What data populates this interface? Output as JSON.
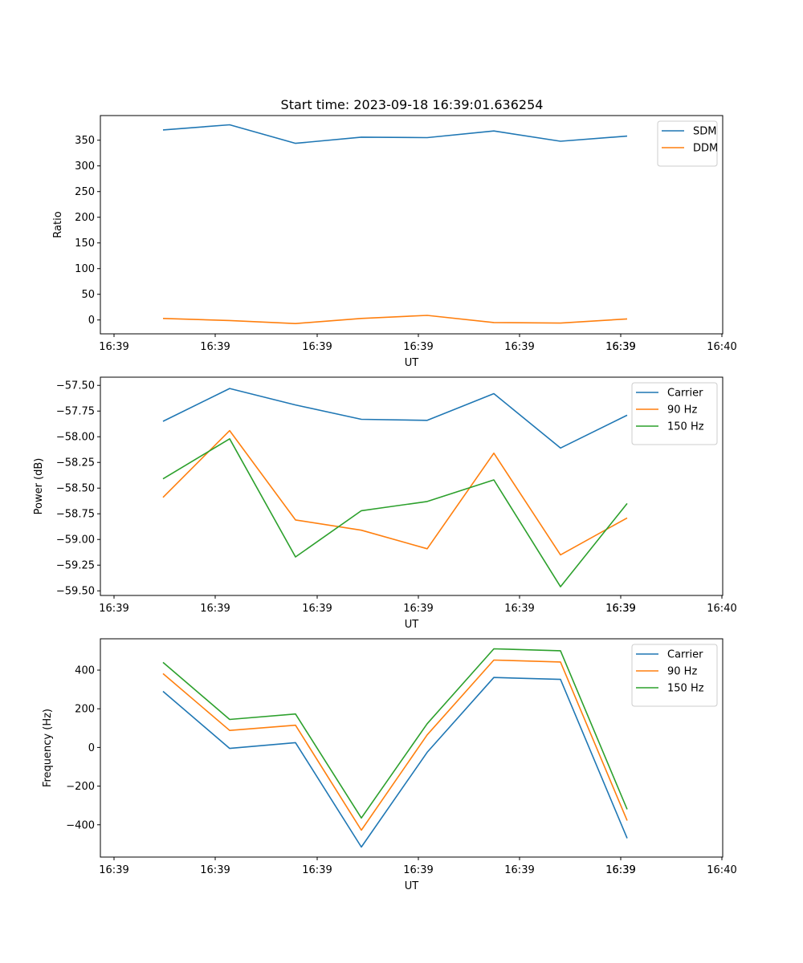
{
  "colors": {
    "c0": "#1f77b4",
    "c1": "#ff7f0e",
    "c2": "#2ca02c"
  },
  "chart_data": [
    {
      "type": "line",
      "title": "Start time: 2023-09-18 16:39:01.636254",
      "xlabel": "UT",
      "ylabel": "Ratio",
      "x_tick_labels": [
        "16:39",
        "16:39",
        "16:39",
        "16:39",
        "16:39",
        "16:39",
        "16:39",
        "16:40"
      ],
      "y_ticks": [
        0,
        50,
        100,
        150,
        200,
        250,
        300,
        350
      ],
      "ylim": [
        -27,
        398
      ],
      "legend_position": "top-right",
      "series": [
        {
          "name": "SDM",
          "color": "#1f77b4",
          "values": [
            370,
            380,
            344,
            356,
            355,
            368,
            348,
            358
          ]
        },
        {
          "name": "DDM",
          "color": "#ff7f0e",
          "values": [
            3,
            -1,
            -7,
            3,
            9,
            -5,
            -6,
            2
          ]
        }
      ]
    },
    {
      "type": "line",
      "title": "",
      "xlabel": "UT",
      "ylabel": "Power (dB)",
      "x_tick_labels": [
        "16:39",
        "16:39",
        "16:39",
        "16:39",
        "16:39",
        "16:39",
        "16:39",
        "16:40"
      ],
      "y_ticks": [
        -57.5,
        -57.75,
        -58.0,
        -58.25,
        -58.5,
        -58.75,
        -59.0,
        -59.25,
        -59.5
      ],
      "y_tick_labels": [
        "−57.50",
        "−57.75",
        "−58.00",
        "−58.25",
        "−58.50",
        "−58.75",
        "−59.00",
        "−59.25",
        "−59.50"
      ],
      "ylim": [
        -59.545,
        -57.42
      ],
      "legend_position": "top-right",
      "series": [
        {
          "name": "Carrier",
          "color": "#1f77b4",
          "values": [
            -57.85,
            -57.53,
            -57.69,
            -57.83,
            -57.84,
            -57.58,
            -58.11,
            -57.79
          ]
        },
        {
          "name": "90 Hz",
          "color": "#ff7f0e",
          "values": [
            -58.59,
            -57.94,
            -58.81,
            -58.91,
            -59.09,
            -58.16,
            -59.15,
            -58.79
          ]
        },
        {
          "name": "150 Hz",
          "color": "#2ca02c",
          "values": [
            -58.41,
            -58.02,
            -59.17,
            -58.72,
            -58.63,
            -58.42,
            -59.46,
            -58.65
          ]
        }
      ]
    },
    {
      "type": "line",
      "title": "",
      "xlabel": "UT",
      "ylabel": "Frequency (Hz)",
      "x_tick_labels": [
        "16:39",
        "16:39",
        "16:39",
        "16:39",
        "16:39",
        "16:39",
        "16:39",
        "16:40"
      ],
      "y_ticks": [
        -400,
        -200,
        0,
        200,
        400
      ],
      "y_tick_labels": [
        "−400",
        "−200",
        "0",
        "200",
        "400"
      ],
      "ylim": [
        -567,
        562
      ],
      "legend_position": "top-right",
      "series": [
        {
          "name": "Carrier",
          "color": "#1f77b4",
          "values": [
            290,
            -5,
            25,
            -515,
            -25,
            362,
            352,
            -470
          ]
        },
        {
          "name": "90 Hz",
          "color": "#ff7f0e",
          "values": [
            382,
            88,
            115,
            -428,
            65,
            452,
            442,
            -378
          ]
        },
        {
          "name": "150 Hz",
          "color": "#2ca02c",
          "values": [
            440,
            145,
            173,
            -365,
            123,
            510,
            500,
            -320
          ]
        }
      ]
    }
  ]
}
